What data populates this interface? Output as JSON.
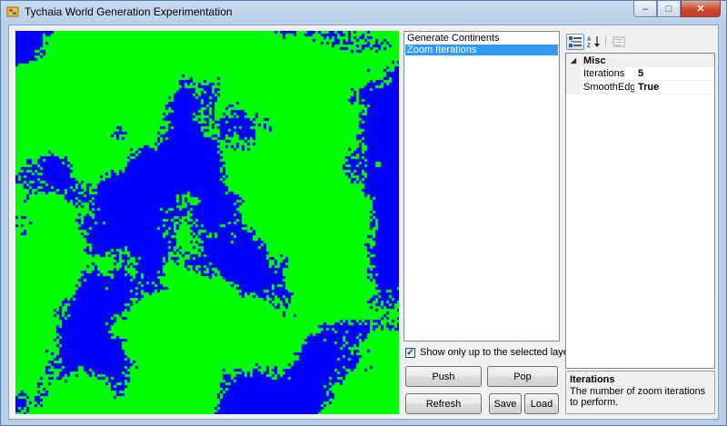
{
  "window": {
    "title": "Tychaia World Generation Experimentation",
    "buttons": {
      "minimize": "–",
      "maximize": "□",
      "close": "✕"
    }
  },
  "map": {
    "description_colors": {
      "land": "#00ff00",
      "water": "#0000ff"
    }
  },
  "layers": {
    "items": [
      {
        "label": "Generate Continents",
        "selected": false
      },
      {
        "label": "Zoom Iterations",
        "selected": true
      }
    ]
  },
  "options": {
    "show_selected_label": "Show only up to the selected layer.",
    "show_selected_checked": true
  },
  "buttons": {
    "push": "Push",
    "pop": "Pop",
    "refresh": "Refresh",
    "save": "Save",
    "load": "Load"
  },
  "property_grid": {
    "toolbar_icons": [
      "categorized-icon",
      "alphabetical-icon",
      "property-pages-icon"
    ],
    "category": {
      "expand_glyph": "◢",
      "name": "Misc"
    },
    "properties": [
      {
        "name": "Iterations",
        "value": "5"
      },
      {
        "name": "SmoothEdges",
        "value": "True"
      }
    ],
    "help": {
      "title": "Iterations",
      "description": "The number of zoom iterations to perform."
    }
  },
  "colors": {
    "selection": "#3399ff",
    "land": "#00ff00",
    "water": "#0000ff"
  }
}
